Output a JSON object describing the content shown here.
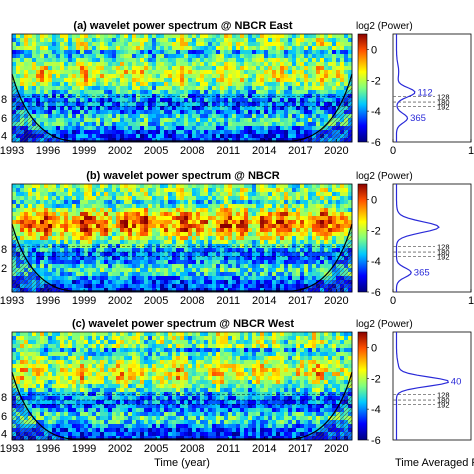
{
  "chart_data": [
    {
      "type": "heatmap",
      "title": "(a) wavelet power spectrum @ NBCR East",
      "xticks": [
        "1993",
        "1996",
        "1999",
        "2002",
        "2005",
        "2008",
        "2011",
        "2014",
        "2017",
        "2020"
      ],
      "colorbar": {
        "label": "log2 (Power)",
        "ticks": [
          "0",
          "-2",
          "-4",
          "-6"
        ],
        "range": [
          -6,
          1
        ]
      },
      "left_y_ticks": [
        "8",
        "6",
        "4"
      ],
      "time_averaged": {
        "xticks": [
          "0",
          "1"
        ],
        "peaks": [
          {
            "label": "112",
            "power": 0.25
          },
          {
            "label": "365",
            "power": 0.15
          }
        ],
        "reference_periods": [
          "128",
          "180",
          "192"
        ]
      },
      "intensity": 0.55,
      "seed": 11
    },
    {
      "type": "heatmap",
      "title": "(b) wavelet power spectrum @ NBCR",
      "xticks": [
        "1993",
        "1996",
        "1999",
        "2002",
        "2005",
        "2008",
        "2011",
        "2014",
        "2017",
        "2020"
      ],
      "colorbar": {
        "label": "log2 (Power)",
        "ticks": [
          "0",
          "-2",
          "-4",
          "-6"
        ],
        "range": [
          -6,
          1
        ]
      },
      "left_y_ticks": [
        "8",
        "2"
      ],
      "time_averaged": {
        "xticks": [
          "0",
          "1"
        ],
        "peaks": [
          {
            "label": "365",
            "power": 0.2
          }
        ],
        "reference_periods": [
          "128",
          "180",
          "192"
        ]
      },
      "intensity": 0.8,
      "seed": 23
    },
    {
      "type": "heatmap",
      "title": "(c) wavelet power spectrum @ NBCR West",
      "xticks": [
        "1993",
        "1996",
        "1999",
        "2002",
        "2005",
        "2008",
        "2011",
        "2014",
        "2017",
        "2020"
      ],
      "colorbar": {
        "label": "log2 (Power)",
        "ticks": [
          "0",
          "-2",
          "-4",
          "-6"
        ],
        "range": [
          -6,
          1
        ]
      },
      "left_y_ticks": [
        "8",
        "6",
        "4"
      ],
      "time_averaged": {
        "xticks": [],
        "peaks": [
          {
            "label": "40",
            "power": 0.7
          }
        ],
        "reference_periods": [
          "128",
          "180",
          "192"
        ]
      },
      "intensity": 0.6,
      "seed": 37
    }
  ],
  "xlabel": "Time (year)",
  "right_xlabel": "Time Averaged Po"
}
